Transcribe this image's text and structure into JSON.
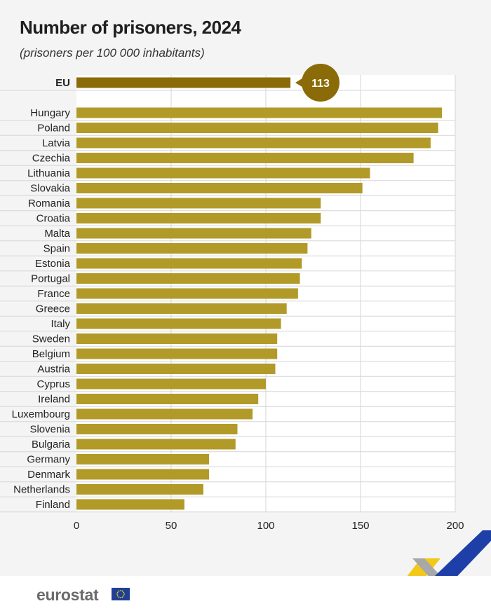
{
  "chart_data": {
    "type": "bar",
    "orientation": "horizontal",
    "title": "Number of prisoners, 2024",
    "subtitle": "(prisoners per 100 000 inhabitants)",
    "highlight": {
      "category": "EU",
      "value": 113,
      "label": "113"
    },
    "categories": [
      "Hungary",
      "Poland",
      "Latvia",
      "Czechia",
      "Lithuania",
      "Slovakia",
      "Romania",
      "Croatia",
      "Malta",
      "Spain",
      "Estonia",
      "Portugal",
      "France",
      "Greece",
      "Italy",
      "Sweden",
      "Belgium",
      "Austria",
      "Cyprus",
      "Ireland",
      "Luxembourg",
      "Slovenia",
      "Bulgaria",
      "Germany",
      "Denmark",
      "Netherlands",
      "Finland"
    ],
    "values": [
      193,
      191,
      187,
      178,
      155,
      151,
      129,
      129,
      124,
      122,
      119,
      118,
      117,
      111,
      108,
      106,
      106,
      105,
      100,
      96,
      93,
      85,
      84,
      70,
      70,
      67,
      57
    ],
    "xlim": [
      0,
      200
    ],
    "xticks": [
      0,
      50,
      100,
      150,
      200
    ],
    "grid": true,
    "colors": {
      "bar": "#b29a29",
      "eu_bar": "#8a6b08",
      "bubble": "#8a6b08"
    }
  },
  "branding": {
    "logo_text": "eurostat"
  }
}
